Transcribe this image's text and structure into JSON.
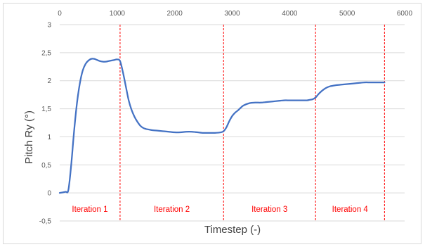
{
  "chart_data": {
    "type": "line",
    "title": "",
    "xlabel": "Timestep (-)",
    "ylabel": "Pitch Ry (°)",
    "xlim": [
      0,
      6000
    ],
    "ylim": [
      -0.5,
      3
    ],
    "x_ticks": [
      "0",
      "1000",
      "2000",
      "3000",
      "4000",
      "5000",
      "6000"
    ],
    "y_ticks": [
      "3",
      "2,5",
      "2",
      "1,5",
      "1",
      "0,5",
      "0",
      "-0,5"
    ],
    "x_tick_values": [
      0,
      1000,
      2000,
      3000,
      4000,
      5000,
      6000
    ],
    "y_tick_values": [
      3,
      2.5,
      2,
      1.5,
      1,
      0.5,
      0,
      -0.5
    ],
    "x_axis_position": "top",
    "grid": {
      "horizontal": true,
      "vertical": false
    },
    "line_color": "#4472c4",
    "marker_color": "#ff0000",
    "series": [
      {
        "x": [
          0,
          100,
          150,
          200,
          250,
          300,
          350,
          400,
          450,
          500,
          550,
          600,
          650,
          700,
          750,
          800,
          850,
          900,
          950,
          1000,
          1050,
          1100,
          1150,
          1200,
          1250,
          1300,
          1350,
          1400,
          1450,
          1500,
          1550,
          1600,
          1700,
          1800,
          1900,
          2000,
          2100,
          2200,
          2300,
          2400,
          2500,
          2600,
          2700,
          2800,
          2850,
          2900,
          2950,
          3000,
          3050,
          3100,
          3150,
          3200,
          3300,
          3400,
          3500,
          3600,
          3700,
          3800,
          3900,
          4000,
          4100,
          4200,
          4300,
          4350,
          4400,
          4450,
          4500,
          4550,
          4600,
          4650,
          4700,
          4750,
          4800,
          4900,
          5000,
          5100,
          5200,
          5300,
          5400,
          5500,
          5600,
          5650
        ],
        "values": [
          0.0,
          0.02,
          0.05,
          0.5,
          1.1,
          1.6,
          1.95,
          2.18,
          2.3,
          2.36,
          2.39,
          2.39,
          2.37,
          2.35,
          2.34,
          2.34,
          2.35,
          2.36,
          2.37,
          2.38,
          2.35,
          2.15,
          1.9,
          1.65,
          1.48,
          1.36,
          1.27,
          1.2,
          1.16,
          1.14,
          1.13,
          1.12,
          1.11,
          1.1,
          1.09,
          1.08,
          1.08,
          1.09,
          1.09,
          1.08,
          1.07,
          1.07,
          1.07,
          1.08,
          1.1,
          1.17,
          1.28,
          1.37,
          1.43,
          1.47,
          1.52,
          1.56,
          1.6,
          1.61,
          1.61,
          1.62,
          1.63,
          1.64,
          1.65,
          1.65,
          1.65,
          1.65,
          1.65,
          1.66,
          1.67,
          1.7,
          1.76,
          1.81,
          1.85,
          1.88,
          1.9,
          1.91,
          1.92,
          1.93,
          1.94,
          1.95,
          1.96,
          1.97,
          1.97,
          1.97,
          1.97,
          1.97
        ]
      }
    ],
    "iterations": [
      {
        "label": "Iteration 1",
        "start": 0,
        "end": 1050
      },
      {
        "label": "Iteration 2",
        "start": 1050,
        "end": 2850
      },
      {
        "label": "Iteration 3",
        "start": 2850,
        "end": 4450
      },
      {
        "label": "Iteration 4",
        "start": 4450,
        "end": 5650
      }
    ]
  }
}
